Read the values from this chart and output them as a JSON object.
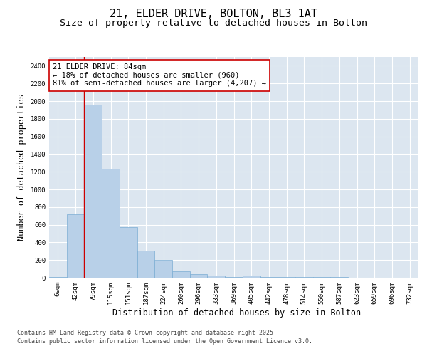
{
  "title_line1": "21, ELDER DRIVE, BOLTON, BL3 1AT",
  "title_line2": "Size of property relative to detached houses in Bolton",
  "xlabel": "Distribution of detached houses by size in Bolton",
  "ylabel": "Number of detached properties",
  "categories": [
    "6sqm",
    "42sqm",
    "79sqm",
    "115sqm",
    "151sqm",
    "187sqm",
    "224sqm",
    "260sqm",
    "296sqm",
    "333sqm",
    "369sqm",
    "405sqm",
    "442sqm",
    "478sqm",
    "514sqm",
    "550sqm",
    "587sqm",
    "623sqm",
    "659sqm",
    "696sqm",
    "732sqm"
  ],
  "values": [
    10,
    715,
    1960,
    1235,
    575,
    305,
    200,
    75,
    40,
    28,
    5,
    28,
    5,
    5,
    5,
    5,
    5,
    0,
    0,
    0,
    0
  ],
  "bar_color": "#b8d0e8",
  "bar_edge_color": "#7aadd4",
  "vline_color": "#cc0000",
  "annotation_text": "21 ELDER DRIVE: 84sqm\n← 18% of detached houses are smaller (960)\n81% of semi-detached houses are larger (4,207) →",
  "annotation_box_color": "#cc0000",
  "ylim": [
    0,
    2500
  ],
  "yticks": [
    0,
    200,
    400,
    600,
    800,
    1000,
    1200,
    1400,
    1600,
    1800,
    2000,
    2200,
    2400
  ],
  "background_color": "#dce6f0",
  "grid_color": "#ffffff",
  "footer_line1": "Contains HM Land Registry data © Crown copyright and database right 2025.",
  "footer_line2": "Contains public sector information licensed under the Open Government Licence v3.0.",
  "title_fontsize": 11,
  "subtitle_fontsize": 9.5,
  "axis_label_fontsize": 8.5,
  "tick_fontsize": 6.5,
  "annotation_fontsize": 7.5,
  "footer_fontsize": 6
}
